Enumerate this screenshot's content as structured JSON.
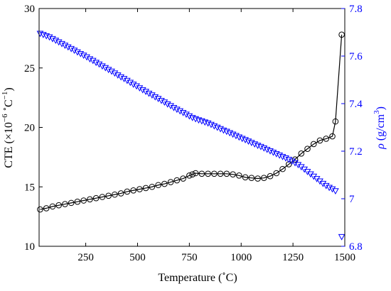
{
  "chart_data": {
    "type": "line",
    "xlabel_main": "Temperature (",
    "xlabel_degree": "∘",
    "xlabel_unit": "C)",
    "ylabel_left_main": "CTE (×10",
    "ylabel_left_exp": "−6",
    "ylabel_left_deg": "∘",
    "ylabel_left_unit": "C",
    "ylabel_left_exp2": "−1",
    "ylabel_left_close": ")",
    "ylabel_right_rho": "ρ",
    "ylabel_right_unit": "(g/cm",
    "ylabel_right_exp": "3",
    "ylabel_right_close": ")",
    "xlim": [
      25,
      1500
    ],
    "ylim_left": [
      10,
      30
    ],
    "ylim_right": [
      6.8,
      7.8
    ],
    "x_ticks": [
      "250",
      "500",
      "750",
      "1000",
      "1250",
      "1500"
    ],
    "y_ticks_left": [
      "10",
      "15",
      "20",
      "25",
      "30"
    ],
    "y_ticks_right": [
      "6.8",
      "7",
      "7.2",
      "7.4",
      "7.6",
      "7.8"
    ],
    "colors": {
      "cte": "#000000",
      "density": "#0000ff",
      "axis": "#000000",
      "right_axis": "#0000ff"
    },
    "series": [
      {
        "axis": "left",
        "marker": "circle",
        "x": [
          30,
          60,
          90,
          120,
          150,
          180,
          210,
          240,
          270,
          300,
          330,
          360,
          390,
          420,
          450,
          480,
          510,
          540,
          570,
          600,
          630,
          660,
          690,
          720,
          750,
          765,
          780,
          810,
          840,
          870,
          900,
          930,
          960,
          990,
          1020,
          1050,
          1080,
          1110,
          1140,
          1170,
          1200,
          1230,
          1260,
          1290,
          1320,
          1350,
          1380,
          1410,
          1440,
          1455,
          1485
        ],
        "y": [
          13.1,
          13.2,
          13.35,
          13.45,
          13.55,
          13.65,
          13.75,
          13.85,
          13.95,
          14.05,
          14.15,
          14.25,
          14.35,
          14.45,
          14.6,
          14.7,
          14.8,
          14.9,
          15.0,
          15.15,
          15.25,
          15.4,
          15.55,
          15.7,
          15.95,
          16.05,
          16.15,
          16.1,
          16.1,
          16.1,
          16.1,
          16.1,
          16.05,
          15.95,
          15.8,
          15.75,
          15.7,
          15.75,
          15.9,
          16.15,
          16.5,
          16.9,
          17.3,
          17.8,
          18.2,
          18.6,
          18.9,
          19.05,
          19.25,
          20.5,
          27.8
        ]
      },
      {
        "axis": "right",
        "marker": "triangle-down",
        "x": [
          30,
          45,
          60,
          75,
          90,
          105,
          120,
          135,
          150,
          165,
          180,
          195,
          210,
          225,
          240,
          255,
          270,
          285,
          300,
          315,
          330,
          345,
          360,
          375,
          390,
          405,
          420,
          435,
          450,
          465,
          480,
          495,
          510,
          525,
          540,
          555,
          570,
          585,
          600,
          615,
          630,
          645,
          660,
          675,
          690,
          705,
          720,
          735,
          750,
          765,
          780,
          795,
          810,
          825,
          840,
          855,
          870,
          885,
          900,
          915,
          930,
          945,
          960,
          975,
          990,
          1005,
          1020,
          1035,
          1050,
          1065,
          1080,
          1095,
          1110,
          1125,
          1140,
          1155,
          1170,
          1185,
          1200,
          1215,
          1230,
          1245,
          1260,
          1275,
          1290,
          1305,
          1320,
          1335,
          1350,
          1365,
          1380,
          1395,
          1410,
          1425,
          1440,
          1455,
          1485
        ],
        "y": [
          7.695,
          7.69,
          7.685,
          7.68,
          7.673,
          7.666,
          7.659,
          7.652,
          7.645,
          7.638,
          7.631,
          7.624,
          7.617,
          7.61,
          7.603,
          7.596,
          7.588,
          7.581,
          7.573,
          7.566,
          7.558,
          7.551,
          7.543,
          7.536,
          7.528,
          7.52,
          7.512,
          7.505,
          7.497,
          7.489,
          7.481,
          7.474,
          7.466,
          7.458,
          7.451,
          7.443,
          7.436,
          7.428,
          7.421,
          7.413,
          7.406,
          7.398,
          7.391,
          7.383,
          7.376,
          7.369,
          7.362,
          7.355,
          7.348,
          7.341,
          7.336,
          7.331,
          7.327,
          7.322,
          7.318,
          7.312,
          7.306,
          7.3,
          7.294,
          7.288,
          7.283,
          7.277,
          7.271,
          7.265,
          7.259,
          7.253,
          7.248,
          7.242,
          7.236,
          7.23,
          7.224,
          7.219,
          7.213,
          7.207,
          7.201,
          7.195,
          7.189,
          7.183,
          7.177,
          7.171,
          7.165,
          7.158,
          7.151,
          7.143,
          7.134,
          7.124,
          7.114,
          7.104,
          7.094,
          7.084,
          7.074,
          7.064,
          7.055,
          7.047,
          7.041,
          7.033,
          6.84
        ]
      }
    ],
    "grid": false,
    "legend": "none"
  }
}
